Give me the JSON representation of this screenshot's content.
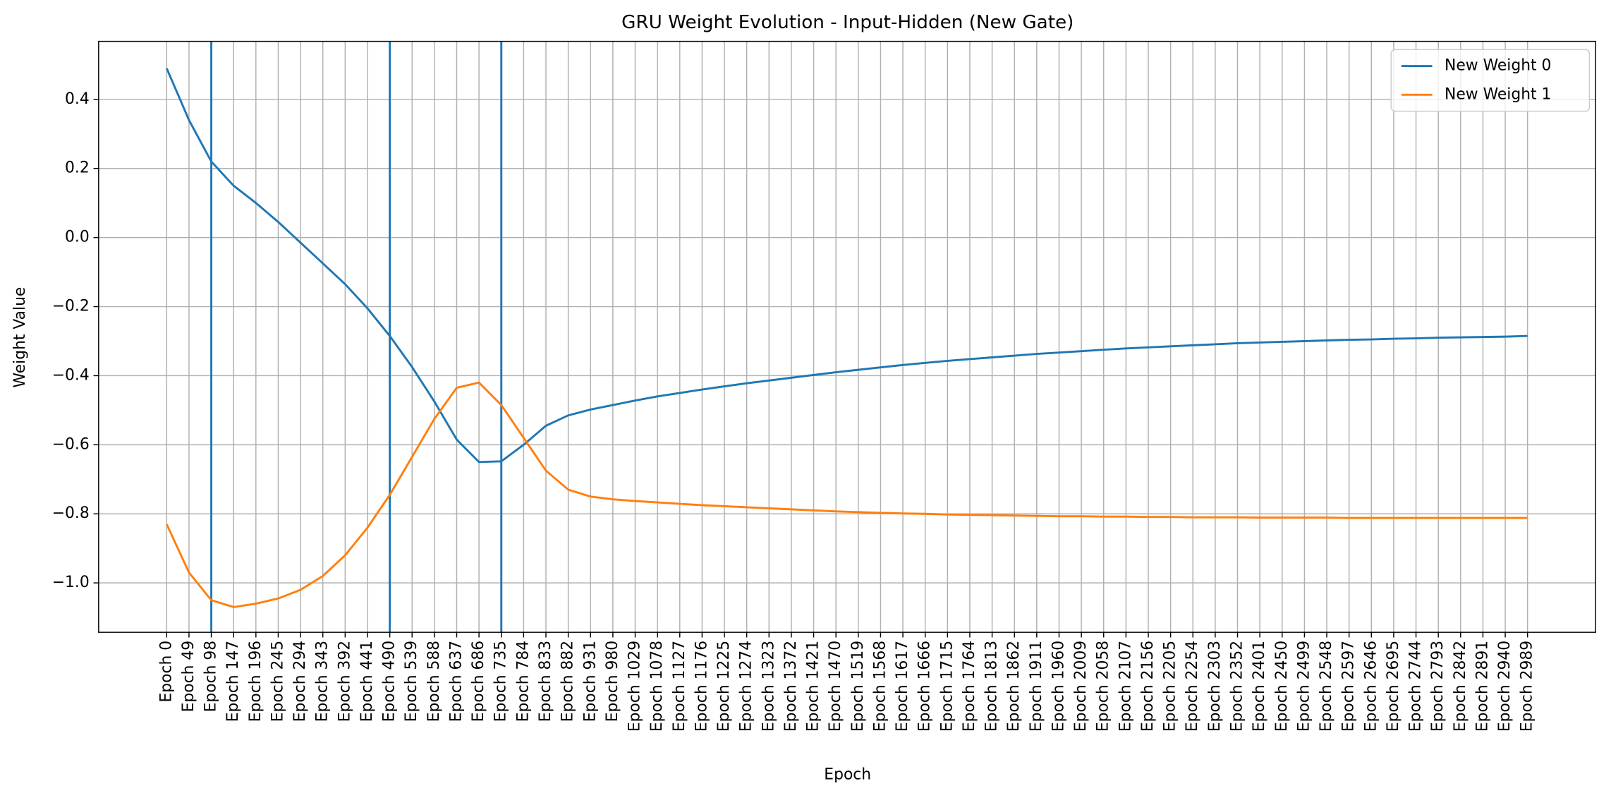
{
  "chart_data": {
    "type": "line",
    "title": "GRU Weight Evolution - Input-Hidden (New Gate)",
    "xlabel": "Epoch",
    "ylabel": "Weight Value",
    "categories": [
      "Epoch 0",
      "Epoch 49",
      "Epoch 98",
      "Epoch 147",
      "Epoch 196",
      "Epoch 245",
      "Epoch 294",
      "Epoch 343",
      "Epoch 392",
      "Epoch 441",
      "Epoch 490",
      "Epoch 539",
      "Epoch 588",
      "Epoch 637",
      "Epoch 686",
      "Epoch 735",
      "Epoch 784",
      "Epoch 833",
      "Epoch 882",
      "Epoch 931",
      "Epoch 980",
      "Epoch 1029",
      "Epoch 1078",
      "Epoch 1127",
      "Epoch 1176",
      "Epoch 1225",
      "Epoch 1274",
      "Epoch 1323",
      "Epoch 1372",
      "Epoch 1421",
      "Epoch 1470",
      "Epoch 1519",
      "Epoch 1568",
      "Epoch 1617",
      "Epoch 1666",
      "Epoch 1715",
      "Epoch 1764",
      "Epoch 1813",
      "Epoch 1862",
      "Epoch 1911",
      "Epoch 1960",
      "Epoch 2009",
      "Epoch 2058",
      "Epoch 2107",
      "Epoch 2156",
      "Epoch 2205",
      "Epoch 2254",
      "Epoch 2303",
      "Epoch 2352",
      "Epoch 2401",
      "Epoch 2450",
      "Epoch 2499",
      "Epoch 2548",
      "Epoch 2597",
      "Epoch 2646",
      "Epoch 2695",
      "Epoch 2744",
      "Epoch 2793",
      "Epoch 2842",
      "Epoch 2891",
      "Epoch 2940",
      "Epoch 2989"
    ],
    "series": [
      {
        "name": "New Weight 0",
        "color": "#1f77b4",
        "values": [
          0.49,
          0.34,
          0.22,
          0.15,
          0.1,
          0.045,
          -0.015,
          -0.075,
          -0.135,
          -0.205,
          -0.285,
          -0.375,
          -0.475,
          -0.585,
          -0.65,
          -0.648,
          -0.6,
          -0.545,
          -0.515,
          -0.498,
          -0.485,
          -0.472,
          -0.46,
          -0.45,
          -0.44,
          -0.431,
          -0.422,
          -0.414,
          -0.406,
          -0.398,
          -0.39,
          -0.383,
          -0.376,
          -0.369,
          -0.363,
          -0.357,
          -0.352,
          -0.347,
          -0.342,
          -0.337,
          -0.333,
          -0.329,
          -0.325,
          -0.321,
          -0.318,
          -0.315,
          -0.312,
          -0.309,
          -0.306,
          -0.304,
          -0.302,
          -0.3,
          -0.298,
          -0.296,
          -0.295,
          -0.293,
          -0.292,
          -0.29,
          -0.289,
          -0.288,
          -0.287,
          -0.285
        ]
      },
      {
        "name": "New Weight 1",
        "color": "#ff7f0e",
        "values": [
          -0.83,
          -0.97,
          -1.05,
          -1.07,
          -1.06,
          -1.045,
          -1.02,
          -0.98,
          -0.92,
          -0.84,
          -0.745,
          -0.635,
          -0.525,
          -0.435,
          -0.42,
          -0.485,
          -0.58,
          -0.675,
          -0.73,
          -0.75,
          -0.758,
          -0.763,
          -0.767,
          -0.771,
          -0.775,
          -0.778,
          -0.781,
          -0.784,
          -0.787,
          -0.79,
          -0.793,
          -0.795,
          -0.797,
          -0.799,
          -0.8,
          -0.802,
          -0.803,
          -0.804,
          -0.805,
          -0.806,
          -0.807,
          -0.807,
          -0.808,
          -0.808,
          -0.809,
          -0.809,
          -0.81,
          -0.81,
          -0.81,
          -0.811,
          -0.811,
          -0.811,
          -0.811,
          -0.812,
          -0.812,
          -0.812,
          -0.812,
          -0.812,
          -0.812,
          -0.812,
          -0.812,
          -0.812
        ]
      }
    ],
    "vlines": [
      "Epoch 98",
      "Epoch 490",
      "Epoch 735"
    ],
    "vline_color": "#1f77b4",
    "ylim": [
      -1.143,
      0.568
    ],
    "yticks": [
      {
        "value": -1.0,
        "label": "−1.0"
      },
      {
        "value": -0.8,
        "label": "−0.8"
      },
      {
        "value": -0.6,
        "label": "−0.6"
      },
      {
        "value": -0.4,
        "label": "−0.4"
      },
      {
        "value": -0.2,
        "label": "−0.2"
      },
      {
        "value": 0.0,
        "label": "0.0"
      },
      0.2,
      0.4
    ],
    "grid": true,
    "legend": "upper right"
  }
}
